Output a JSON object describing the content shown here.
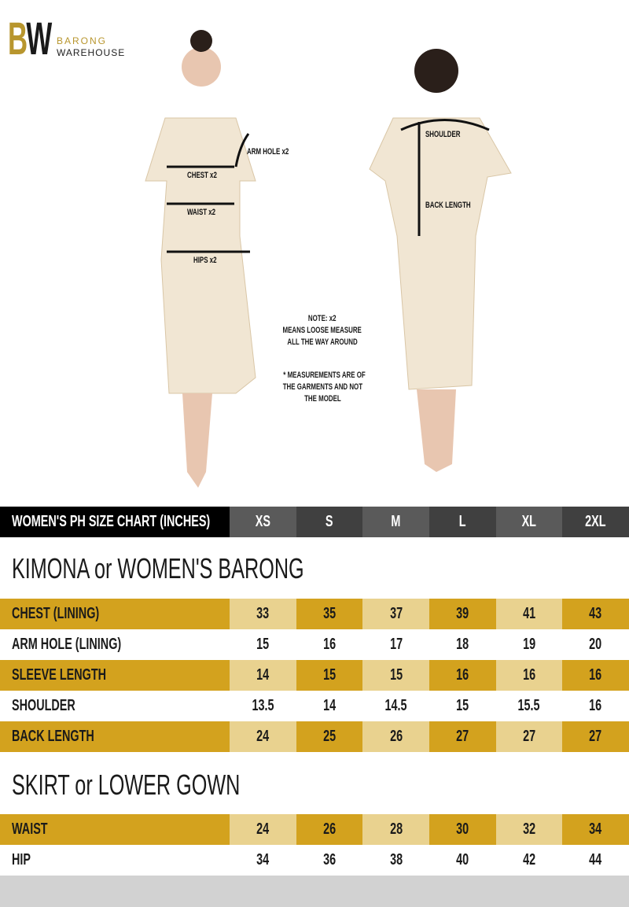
{
  "logo": {
    "mark": "BW",
    "line1": "BARONG",
    "line2": "WAREHOUSE",
    "gold": "#b8962e"
  },
  "figure_labels": {
    "arm_hole": "ARM HOLE x2",
    "chest": "CHEST x2",
    "waist": "WAIST x2",
    "hips": "HIPS x2",
    "shoulder": "SHOULDER",
    "back_length": "BACK LENGTH"
  },
  "notes": {
    "n1": "NOTE: x2",
    "n2": "MEANS LOOSE MEASURE",
    "n3": "ALL THE WAY AROUND",
    "m1": "* MEASUREMENTS ARE OF",
    "m2": "THE GARMENTS AND NOT",
    "m3": "THE MODEL"
  },
  "colors": {
    "gold": "#d3a21e",
    "light_gold": "#e9d28f",
    "header": "#000000"
  },
  "chart": {
    "title": "WOMEN'S PH SIZE CHART (INCHES)",
    "sizes": [
      "XS",
      "S",
      "M",
      "L",
      "XL",
      "2XL"
    ],
    "sections": [
      {
        "title": "KIMONA or WOMEN'S BARONG",
        "rows": [
          {
            "label": "CHEST (LINING)",
            "values": [
              "33",
              "35",
              "37",
              "39",
              "41",
              "43"
            ]
          },
          {
            "label": "ARM HOLE (LINING)",
            "values": [
              "15",
              "16",
              "17",
              "18",
              "19",
              "20"
            ]
          },
          {
            "label": "SLEEVE LENGTH",
            "values": [
              "14",
              "15",
              "15",
              "16",
              "16",
              "16"
            ]
          },
          {
            "label": "SHOULDER",
            "values": [
              "13.5",
              "14",
              "14.5",
              "15",
              "15.5",
              "16"
            ]
          },
          {
            "label": "BACK LENGTH",
            "values": [
              "24",
              "25",
              "26",
              "27",
              "27",
              "27"
            ]
          }
        ]
      },
      {
        "title": "SKIRT or LOWER GOWN",
        "rows": [
          {
            "label": "WAIST",
            "values": [
              "24",
              "26",
              "28",
              "30",
              "32",
              "34"
            ]
          },
          {
            "label": "HIP",
            "values": [
              "34",
              "36",
              "38",
              "40",
              "42",
              "44"
            ]
          }
        ]
      }
    ]
  }
}
